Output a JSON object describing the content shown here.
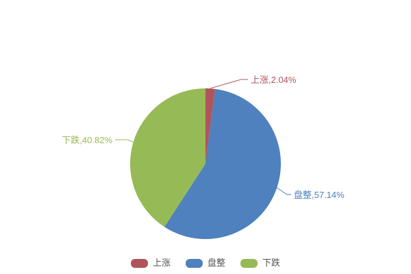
{
  "chart_data": {
    "type": "pie",
    "title": "",
    "categories": [
      "上涨",
      "盘整",
      "下跌"
    ],
    "values": [
      2.04,
      57.14,
      40.82
    ],
    "unit": "%",
    "labels": [
      "上涨,2.04%",
      "盘整,57.14%",
      "下跌,40.82%"
    ],
    "colors": [
      "#b0545c",
      "#4e81bd",
      "#96ba56"
    ],
    "legend_text_color": "#555555",
    "background_color": "#ffffff",
    "start_angle_deg": 0,
    "direction": "clockwise",
    "legend_position": "bottom",
    "legend_items": [
      "上涨",
      "盘整",
      "下跌"
    ]
  }
}
